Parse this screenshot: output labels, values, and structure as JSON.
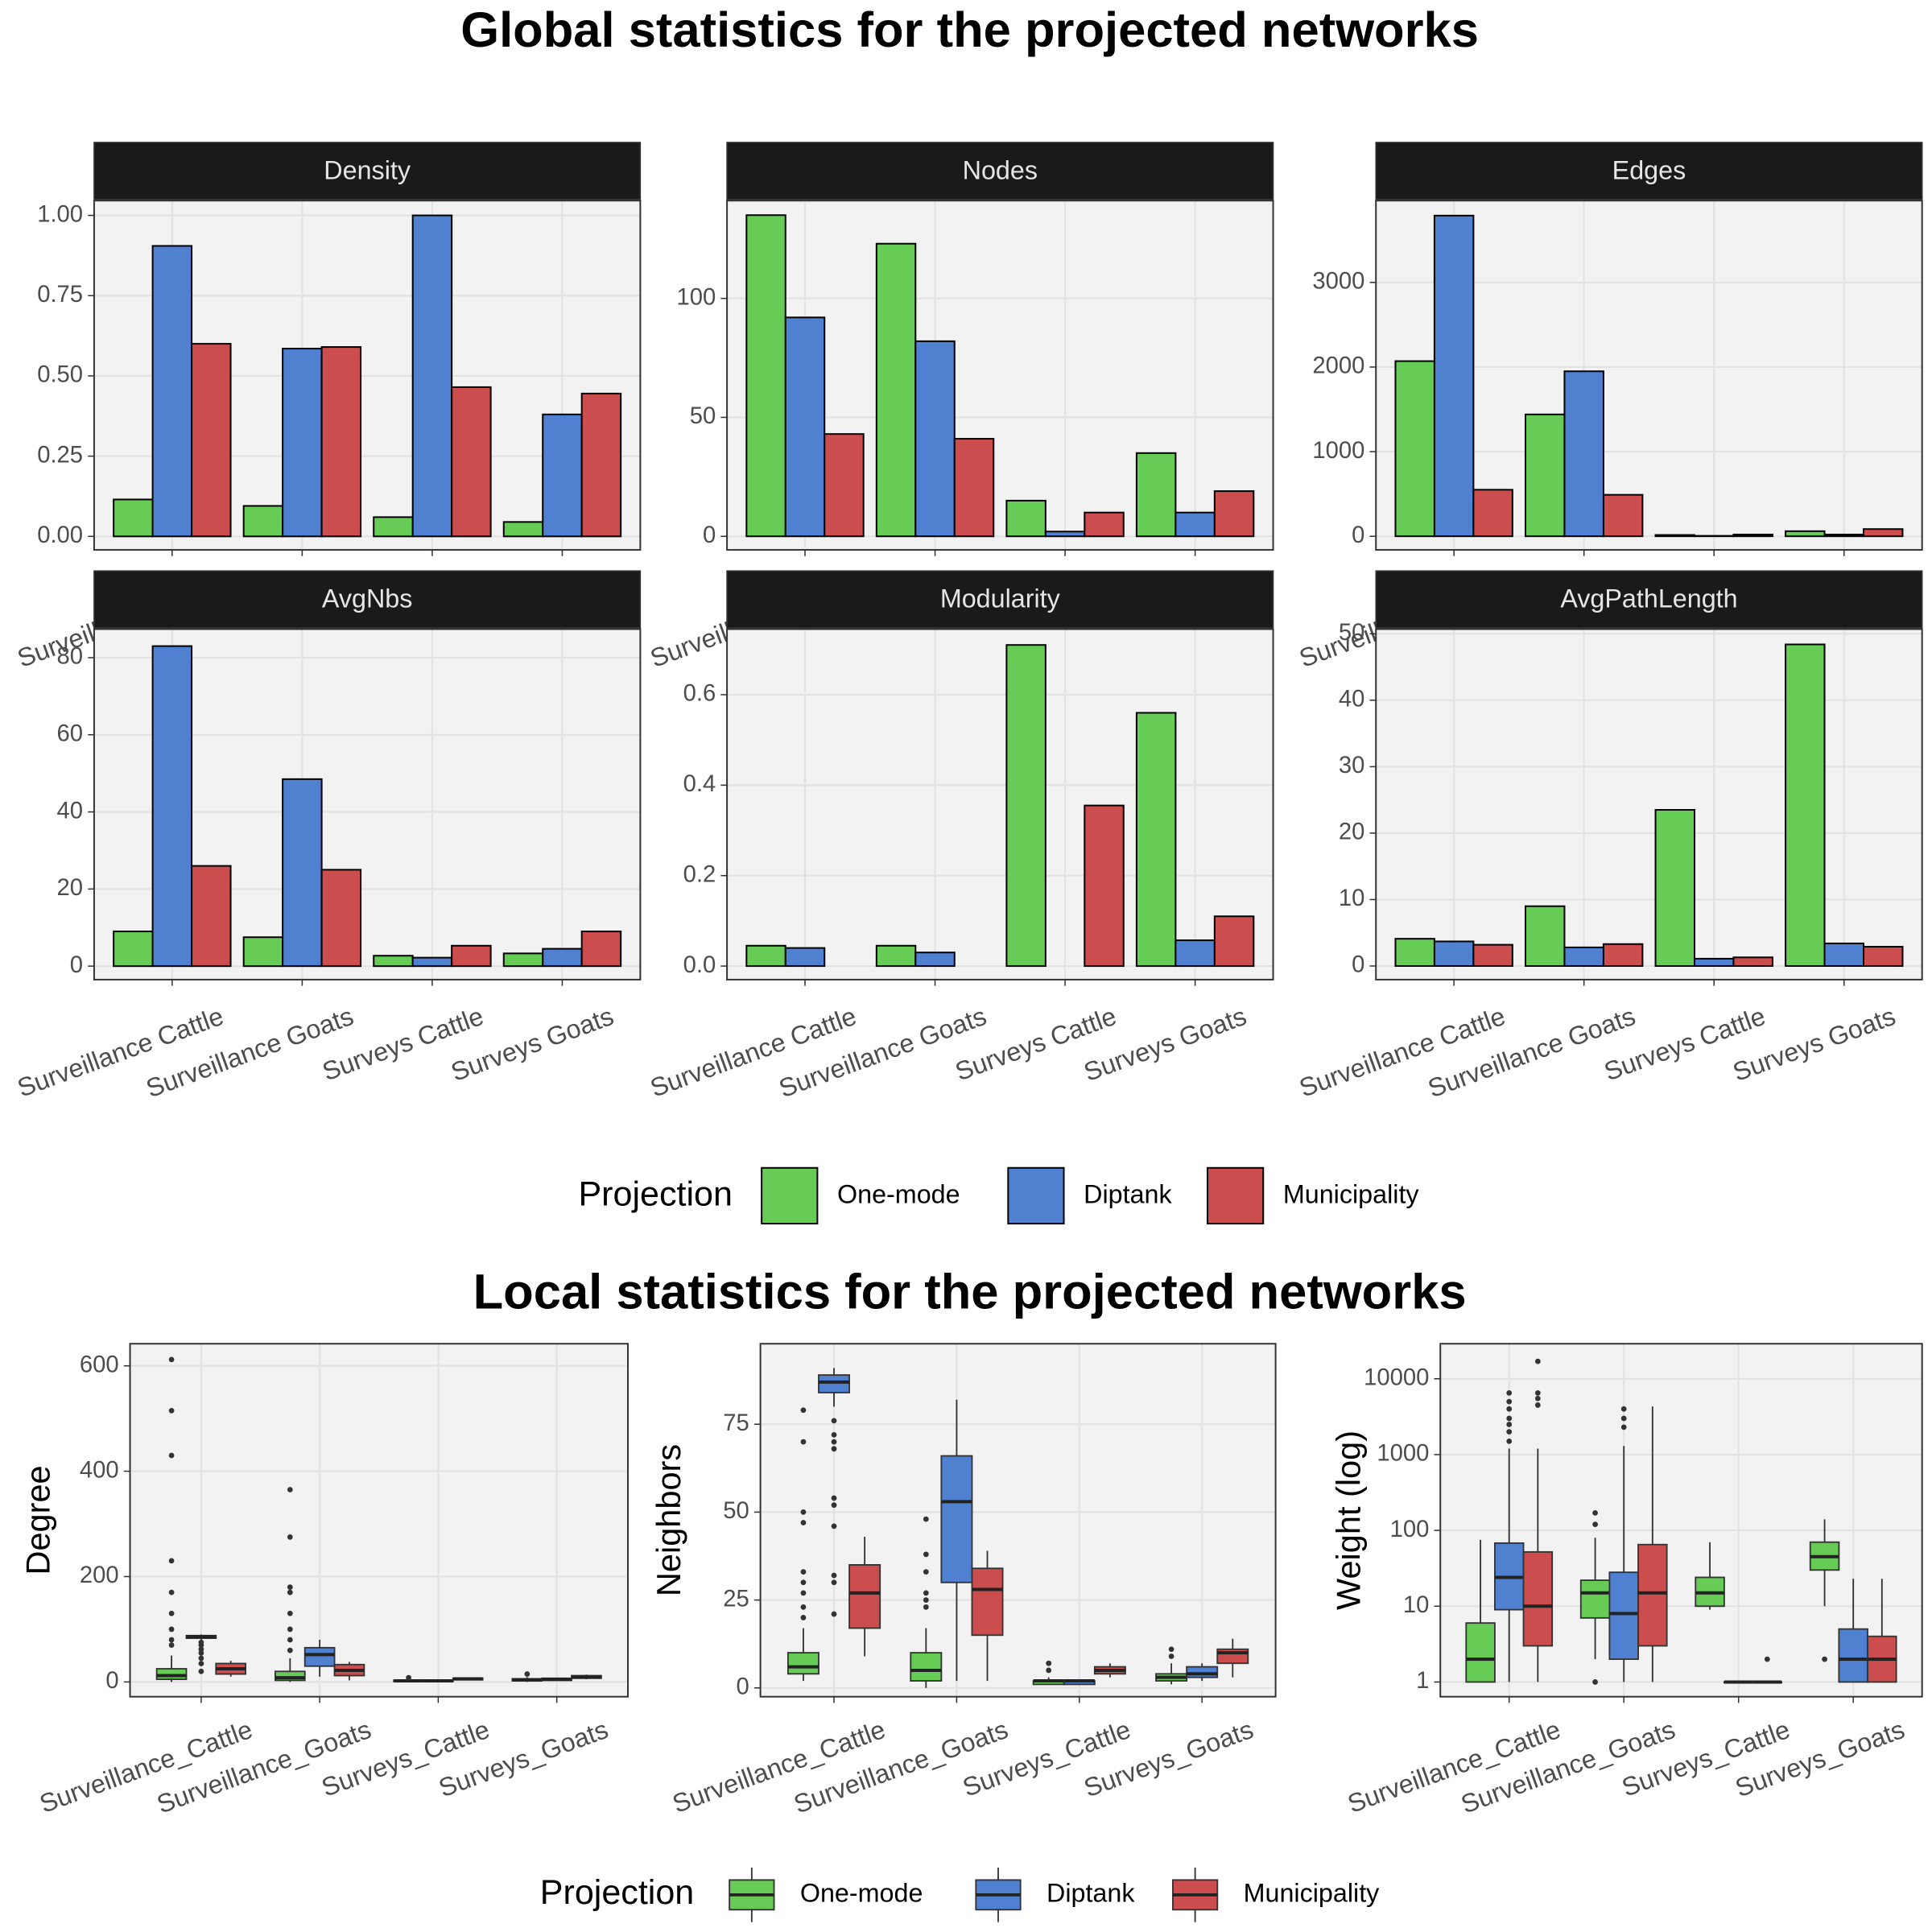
{
  "chart_data": [
    {
      "type": "bar",
      "suptitle": "Global statistics for the projected networks",
      "title": "Density",
      "legend_title": "Projection",
      "categories": [
        "Surveillance Cattle",
        "Surveillance Goats",
        "Surveys Cattle",
        "Surveys Goats"
      ],
      "series": [
        {
          "name": "One-mode",
          "color": "#66cc55",
          "values": [
            0.115,
            0.095,
            0.06,
            0.045
          ]
        },
        {
          "name": "Diptank",
          "color": "#5080d0",
          "values": [
            0.905,
            0.585,
            1.0,
            0.38
          ]
        },
        {
          "name": "Municipality",
          "color": "#cc4d4d",
          "values": [
            0.6,
            0.59,
            0.465,
            0.445
          ]
        }
      ],
      "ylim": [
        -0.042,
        1.046
      ],
      "yticks": [
        {
          "value": 0,
          "label": "0.00"
        },
        {
          "value": 0.25,
          "label": "0.25"
        },
        {
          "value": 0.5,
          "label": "0.50"
        },
        {
          "value": 0.75,
          "label": "0.75"
        },
        {
          "value": 1,
          "label": "1.00"
        }
      ],
      "grid": true
    },
    {
      "type": "bar",
      "title": "Nodes",
      "categories": [
        "Surveillance Cattle",
        "Surveillance Goats",
        "Surveys Cattle",
        "Surveys Goats"
      ],
      "series": [
        {
          "name": "One-mode",
          "color": "#66cc55",
          "values": [
            135,
            123,
            15,
            35
          ]
        },
        {
          "name": "Diptank",
          "color": "#5080d0",
          "values": [
            92,
            82,
            2,
            10
          ]
        },
        {
          "name": "Municipality",
          "color": "#cc4d4d",
          "values": [
            43,
            41,
            10,
            19
          ]
        }
      ],
      "ylim": [
        -5.7,
        141.1
      ],
      "yticks": [
        0,
        50,
        100
      ],
      "grid": true
    },
    {
      "type": "bar",
      "title": "Edges",
      "categories": [
        "Surveillance Cattle",
        "Surveillance Goats",
        "Surveys Cattle",
        "Surveys Goats"
      ],
      "series": [
        {
          "name": "One-mode",
          "color": "#66cc55",
          "values": [
            2070,
            1440,
            15,
            60
          ]
        },
        {
          "name": "Diptank",
          "color": "#5080d0",
          "values": [
            3790,
            1950,
            5,
            20
          ]
        },
        {
          "name": "Municipality",
          "color": "#cc4d4d",
          "values": [
            550,
            490,
            20,
            85
          ]
        }
      ],
      "ylim": [
        -161,
        3967
      ],
      "yticks": [
        0,
        1000,
        2000,
        3000
      ],
      "grid": true
    },
    {
      "type": "bar",
      "title": "AvgNbs",
      "categories": [
        "Surveillance Cattle",
        "Surveillance Goats",
        "Surveys Cattle",
        "Surveys Goats"
      ],
      "series": [
        {
          "name": "One-mode",
          "color": "#66cc55",
          "values": [
            9,
            7.5,
            2.7,
            3.3
          ]
        },
        {
          "name": "Diptank",
          "color": "#5080d0",
          "values": [
            83,
            48.5,
            2.2,
            4.5
          ]
        },
        {
          "name": "Municipality",
          "color": "#cc4d4d",
          "values": [
            26,
            25,
            5.3,
            9
          ]
        }
      ],
      "ylim": [
        -3.5,
        87.4
      ],
      "yticks": [
        0,
        20,
        40,
        60,
        80
      ],
      "grid": true
    },
    {
      "type": "bar",
      "title": "Modularity",
      "categories": [
        "Surveillance Cattle",
        "Surveillance Goats",
        "Surveys Cattle",
        "Surveys Goats"
      ],
      "series": [
        {
          "name": "One-mode",
          "color": "#66cc55",
          "values": [
            0.045,
            0.045,
            0.71,
            0.56
          ]
        },
        {
          "name": "Diptank",
          "color": "#5080d0",
          "values": [
            0.04,
            0.03,
            0,
            0.057
          ]
        },
        {
          "name": "Municipality",
          "color": "#cc4d4d",
          "values": [
            0,
            0,
            0.355,
            0.11
          ]
        }
      ],
      "ylim": [
        -0.03,
        0.745
      ],
      "yticks": [
        {
          "value": 0,
          "label": "0.0"
        },
        {
          "value": 0.2,
          "label": "0.2"
        },
        {
          "value": 0.4,
          "label": "0.4"
        },
        {
          "value": 0.6,
          "label": "0.6"
        }
      ],
      "grid": true
    },
    {
      "type": "bar",
      "title": "AvgPathLength",
      "categories": [
        "Surveillance Cattle",
        "Surveillance Goats",
        "Surveys Cattle",
        "Surveys Goats"
      ],
      "series": [
        {
          "name": "One-mode",
          "color": "#66cc55",
          "values": [
            4.1,
            9,
            23.5,
            48.4
          ]
        },
        {
          "name": "Diptank",
          "color": "#5080d0",
          "values": [
            3.7,
            2.8,
            1.1,
            3.4
          ]
        },
        {
          "name": "Municipality",
          "color": "#cc4d4d",
          "values": [
            3.2,
            3.3,
            1.3,
            2.9
          ]
        }
      ],
      "ylim": [
        -2.05,
        50.7
      ],
      "yticks": [
        0,
        10,
        20,
        30,
        40,
        50
      ],
      "grid": true
    },
    {
      "type": "box",
      "suptitle": "Local statistics for the projected networks",
      "ylabel": "Degree",
      "legend_title": "Projection",
      "categories": [
        "Surveillance_Cattle",
        "Surveillance_Goats",
        "Surveys_Cattle",
        "Surveys_Goats"
      ],
      "series": [
        {
          "name": "One-mode",
          "color": "#66cc55",
          "values": [
            {
              "min": 0,
              "q1": 5,
              "median": 12,
              "q3": 25,
              "max": 50,
              "outliers": [
                70,
                80,
                100,
                130,
                170,
                230,
                430,
                515,
                612
              ]
            },
            {
              "min": 0,
              "q1": 3,
              "median": 8,
              "q3": 20,
              "max": 45,
              "outliers": [
                60,
                80,
                100,
                130,
                170,
                180,
                275,
                365
              ]
            },
            {
              "min": 1,
              "q1": 1,
              "median": 2,
              "q3": 3,
              "max": 4,
              "outliers": [
                8
              ]
            },
            {
              "min": 0,
              "q1": 2,
              "median": 4,
              "q3": 6,
              "max": 9,
              "outliers": [
                15
              ]
            }
          ]
        },
        {
          "name": "Diptank",
          "color": "#5080d0",
          "values": [
            {
              "min": 80,
              "q1": 83,
              "median": 86,
              "q3": 88,
              "max": 90,
              "outliers": [
                20,
                35,
                45,
                55,
                62,
                70,
                75
              ]
            },
            {
              "min": 10,
              "q1": 30,
              "median": 52,
              "q3": 65,
              "max": 80
            },
            {
              "min": 1,
              "q1": 1,
              "median": 2,
              "q3": 3,
              "max": 3
            },
            {
              "min": 2,
              "q1": 3,
              "median": 5,
              "q3": 7,
              "max": 8
            }
          ]
        },
        {
          "name": "Municipality",
          "color": "#cc4d4d",
          "values": [
            {
              "min": 10,
              "q1": 15,
              "median": 25,
              "q3": 35,
              "max": 40
            },
            {
              "min": 3,
              "q1": 12,
              "median": 22,
              "q3": 33,
              "max": 38
            },
            {
              "min": 3,
              "q1": 4,
              "median": 6,
              "q3": 7,
              "max": 8
            },
            {
              "min": 5,
              "q1": 7,
              "median": 9,
              "q3": 12,
              "max": 14
            }
          ]
        }
      ],
      "ylim": [
        -28,
        642
      ],
      "yticks": [
        0,
        200,
        400,
        600
      ],
      "grid": true
    },
    {
      "type": "box",
      "ylabel": "Neighbors",
      "categories": [
        "Surveillance_Cattle",
        "Surveillance_Goats",
        "Surveys_Cattle",
        "Surveys_Goats"
      ],
      "series": [
        {
          "name": "One-mode",
          "color": "#66cc55",
          "values": [
            {
              "min": 2,
              "q1": 4,
              "median": 6,
              "q3": 10,
              "max": 17,
              "outliers": [
                20,
                23,
                27,
                30,
                33,
                47,
                50,
                70,
                79
              ]
            },
            {
              "min": 0,
              "q1": 2,
              "median": 5,
              "q3": 10,
              "max": 17,
              "outliers": [
                23,
                25,
                27,
                33,
                38,
                48
              ]
            },
            {
              "min": 1,
              "q1": 1,
              "median": 2,
              "q3": 2,
              "max": 3,
              "outliers": [
                5,
                7
              ]
            },
            {
              "min": 1,
              "q1": 2,
              "median": 3,
              "q3": 4,
              "max": 7,
              "outliers": [
                9,
                11
              ]
            }
          ]
        },
        {
          "name": "Diptank",
          "color": "#5080d0",
          "values": [
            {
              "min": 80,
              "q1": 84,
              "median": 87,
              "q3": 89,
              "max": 91,
              "outliers": [
                21,
                30,
                32,
                46,
                52,
                54,
                68,
                70,
                72,
                76
              ]
            },
            {
              "min": 2,
              "q1": 30,
              "median": 53,
              "q3": 66,
              "max": 82
            },
            {
              "min": 1,
              "q1": 1,
              "median": 2,
              "q3": 2,
              "max": 2
            },
            {
              "min": 2,
              "q1": 3,
              "median": 4,
              "q3": 6,
              "max": 7
            }
          ]
        },
        {
          "name": "Municipality",
          "color": "#cc4d4d",
          "values": [
            {
              "min": 9,
              "q1": 17,
              "median": 27,
              "q3": 35,
              "max": 43
            },
            {
              "min": 2,
              "q1": 15,
              "median": 28,
              "q3": 34,
              "max": 39
            },
            {
              "min": 3,
              "q1": 4,
              "median": 5,
              "q3": 6,
              "max": 7
            },
            {
              "min": 3,
              "q1": 7,
              "median": 10,
              "q3": 11,
              "max": 14
            }
          ]
        }
      ],
      "ylim": [
        -2.5,
        97.9
      ],
      "yticks": [
        0,
        25,
        50,
        75
      ],
      "grid": true
    },
    {
      "type": "box",
      "ylabel": "Weight (log)",
      "log_y": true,
      "categories": [
        "Surveillance_Cattle",
        "Surveillance_Goats",
        "Surveys_Cattle",
        "Surveys_Goats"
      ],
      "series": [
        {
          "name": "One-mode",
          "color": "#66cc55",
          "values": [
            {
              "min": 1,
              "q1": 1,
              "median": 2,
              "q3": 6,
              "max": 75
            },
            {
              "min": 2,
              "q1": 7,
              "median": 15,
              "q3": 22,
              "max": 80,
              "outliers": [
                1,
                120,
                170
              ]
            },
            {
              "min": 9,
              "q1": 10,
              "median": 15,
              "q3": 24,
              "max": 70
            },
            {
              "min": 10,
              "q1": 30,
              "median": 45,
              "q3": 70,
              "max": 140,
              "outliers": [
                2
              ]
            }
          ]
        },
        {
          "name": "Diptank",
          "color": "#5080d0",
          "values": [
            {
              "min": 1,
              "q1": 9,
              "median": 24,
              "q3": 68,
              "max": 1200,
              "outliers": [
                1500,
                2000,
                2500,
                3000,
                4000,
                5000,
                6500
              ]
            },
            {
              "min": 1,
              "q1": 2,
              "median": 8,
              "q3": 28,
              "max": 1300,
              "outliers": [
                2300,
                3000,
                4000
              ]
            },
            {
              "min": 1,
              "q1": 1,
              "median": 1,
              "q3": 1,
              "max": 1
            },
            {
              "min": 1,
              "q1": 1,
              "median": 2,
              "q3": 5,
              "max": 23
            }
          ]
        },
        {
          "name": "Municipality",
          "color": "#cc4d4d",
          "values": [
            {
              "min": 1,
              "q1": 3,
              "median": 10,
              "q3": 52,
              "max": 1200,
              "outliers": [
                4500,
                5500,
                6500,
                17000
              ]
            },
            {
              "min": 1,
              "q1": 3,
              "median": 15,
              "q3": 65,
              "max": 4300
            },
            {
              "min": 1,
              "q1": 1,
              "median": 1,
              "q3": 1,
              "max": 1,
              "outliers": [
                2
              ]
            },
            {
              "min": 1,
              "q1": 1,
              "median": 2,
              "q3": 4,
              "max": 23
            }
          ]
        }
      ],
      "ylim": [
        0.64,
        29000
      ],
      "yticks": [
        1,
        10,
        100,
        1000,
        10000
      ],
      "grid": true
    }
  ]
}
